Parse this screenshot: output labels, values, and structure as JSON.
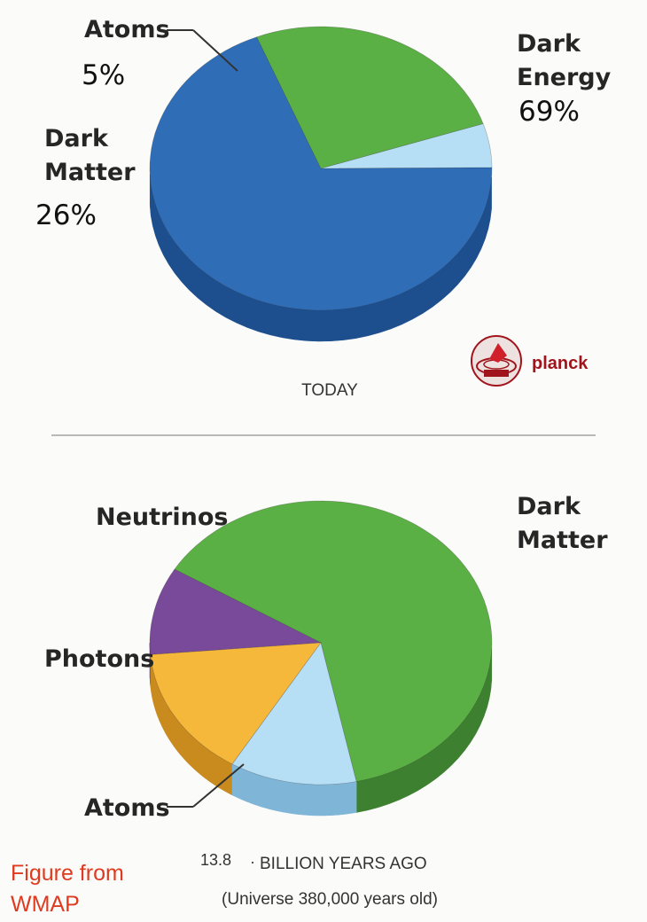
{
  "chart_data": [
    {
      "type": "pie",
      "caption": "TODAY",
      "slices": [
        {
          "name": "Dark Energy",
          "label_lines": [
            "Dark",
            "Energy"
          ],
          "pct_label": "69%",
          "value": 69,
          "color": "#2f6db7",
          "side_color": "#1d4f8f"
        },
        {
          "name": "Atoms",
          "label_lines": [
            "Atoms"
          ],
          "pct_label": "5%",
          "value": 5,
          "color": "#b6def4",
          "side_color": "#7fb6d8"
        },
        {
          "name": "Dark Matter",
          "label_lines": [
            "Dark",
            "Matter"
          ],
          "pct_label": "26%",
          "value": 26,
          "color": "#5bb045",
          "side_color": "#3d8030"
        }
      ]
    },
    {
      "type": "pie",
      "caption_lines": [
        "13.8",
        "BILLION YEARS AGO",
        "(Universe 380,000 years old)"
      ],
      "slices": [
        {
          "name": "Dark Matter",
          "label_lines": [
            "Dark",
            "Matter"
          ],
          "value": 63,
          "color": "#5bb045",
          "side_color": "#3d8030"
        },
        {
          "name": "Neutrinos",
          "label_lines": [
            "Neutrinos"
          ],
          "value": 10,
          "color": "#7a4a9a",
          "side_color": "#5a3272"
        },
        {
          "name": "Photons",
          "label_lines": [
            "Photons"
          ],
          "value": 15,
          "color": "#f6b83a",
          "side_color": "#c98a1e"
        },
        {
          "name": "Atoms",
          "label_lines": [
            "Atoms"
          ],
          "value": 12,
          "color": "#b6def4",
          "side_color": "#7fb6d8"
        }
      ]
    }
  ],
  "logo": {
    "name": "planck",
    "text": "planck",
    "color": "#a0141c"
  },
  "credit": {
    "lines": [
      "Figure from",
      "WMAP"
    ],
    "color": "#e03a1f"
  }
}
